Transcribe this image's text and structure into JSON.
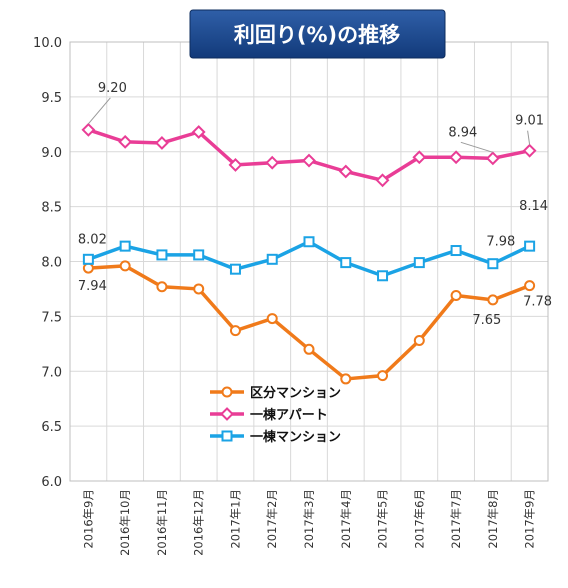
{
  "chart_data": {
    "type": "line",
    "title": "利回り(%)の推移",
    "xlabel": "",
    "ylabel": "",
    "ylim": [
      6.0,
      10.0
    ],
    "yticks": [
      "6.0",
      "6.5",
      "7.0",
      "7.5",
      "8.0",
      "8.5",
      "9.0",
      "9.5",
      "10.0"
    ],
    "grid": true,
    "legend_position": "bottom-left",
    "categories": [
      "2016年9月",
      "2016年10月",
      "2016年11月",
      "2016年12月",
      "2017年1月",
      "2017年2月",
      "2017年3月",
      "2017年4月",
      "2017年5月",
      "2017年6月",
      "2017年7月",
      "2017年8月",
      "2017年9月"
    ],
    "series": [
      {
        "name": "区分マンション",
        "color": "#f07a1a",
        "marker": "circle",
        "values": [
          7.94,
          7.96,
          7.77,
          7.75,
          7.37,
          7.48,
          7.2,
          6.93,
          6.96,
          7.28,
          7.69,
          7.65,
          7.78
        ],
        "labels": [
          {
            "index": 0,
            "text": "7.94"
          },
          {
            "index": 11,
            "text": "7.65"
          },
          {
            "index": 12,
            "text": "7.78"
          }
        ]
      },
      {
        "name": "一棟アパート",
        "color": "#e93d96",
        "marker": "diamond",
        "values": [
          9.2,
          9.09,
          9.08,
          9.18,
          8.88,
          8.9,
          8.92,
          8.82,
          8.74,
          8.95,
          8.95,
          8.94,
          9.01
        ],
        "labels": [
          {
            "index": 0,
            "text": "9.20"
          },
          {
            "index": 11,
            "text": "8.94"
          },
          {
            "index": 12,
            "text": "9.01"
          }
        ]
      },
      {
        "name": "一棟マンション",
        "color": "#1ba3e5",
        "marker": "square",
        "values": [
          8.02,
          8.14,
          8.06,
          8.06,
          7.93,
          8.02,
          8.18,
          7.99,
          7.87,
          7.99,
          8.1,
          7.98,
          8.14
        ],
        "labels": [
          {
            "index": 0,
            "text": "8.02"
          },
          {
            "index": 11,
            "text": "7.98"
          },
          {
            "index": 12,
            "text": "8.14"
          }
        ]
      }
    ]
  }
}
